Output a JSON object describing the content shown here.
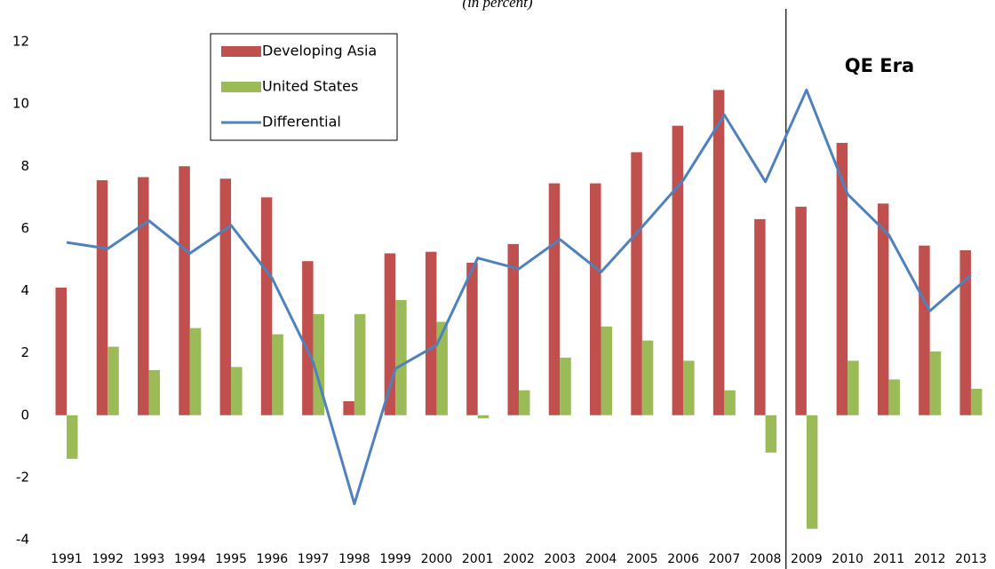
{
  "chart_data": {
    "type": "bar",
    "subtitle": "(in percent)",
    "annotation": "QE Era",
    "categories": [
      "1991",
      "1992",
      "1993",
      "1994",
      "1995",
      "1996",
      "1997",
      "1998",
      "1999",
      "2000",
      "2001",
      "2002",
      "2003",
      "2004",
      "2005",
      "2006",
      "2007",
      "2008",
      "2009",
      "2010",
      "2011",
      "2012",
      "2013"
    ],
    "series": [
      {
        "name": "Developing Asia",
        "type": "bar",
        "color": "#c0504d",
        "values": [
          4.1,
          7.55,
          7.65,
          8.0,
          7.6,
          7.0,
          4.95,
          0.45,
          5.2,
          5.25,
          4.9,
          5.5,
          7.45,
          7.45,
          8.45,
          9.3,
          10.45,
          6.3,
          6.7,
          8.75,
          6.8,
          5.45,
          5.3
        ]
      },
      {
        "name": "United States",
        "type": "bar",
        "color": "#9bbb59",
        "values": [
          -1.4,
          2.2,
          1.45,
          2.8,
          1.55,
          2.6,
          3.25,
          3.25,
          3.7,
          3.0,
          -0.1,
          0.8,
          1.85,
          2.85,
          2.4,
          1.75,
          0.8,
          -1.2,
          -3.65,
          1.75,
          1.15,
          2.05,
          0.85
        ]
      },
      {
        "name": "Differential",
        "type": "line",
        "color": "#4f81bd",
        "values": [
          5.55,
          5.35,
          6.25,
          5.2,
          6.1,
          4.4,
          1.7,
          -2.85,
          1.5,
          2.25,
          5.05,
          4.7,
          5.65,
          4.6,
          6.05,
          7.55,
          9.65,
          7.5,
          10.45,
          7.1,
          5.8,
          3.35,
          4.5
        ]
      }
    ],
    "ylim": [
      -4,
      12
    ],
    "yticks": [
      -4,
      -2,
      0,
      2,
      4,
      6,
      8,
      10,
      12
    ],
    "grid": false,
    "legend": "top-left"
  }
}
